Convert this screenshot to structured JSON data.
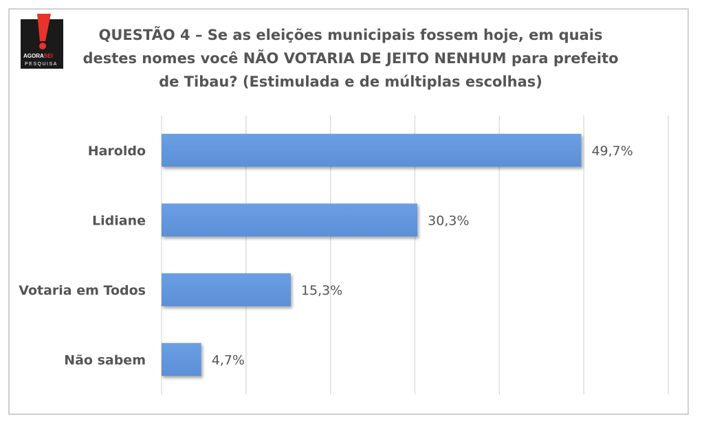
{
  "title_lines": [
    "QUESTÃO 4 – Se as eleições municipais fossem hoje, em quais",
    "destes nomes você NÃO VOTARIA DE JEITO NENHUM para prefeito",
    "de Tibau? (Estimulada e de múltiplas escolhas)"
  ],
  "logo": {
    "line1_a": "AGORA",
    "line1_b": "SEI",
    "line2": "PESQUISA",
    "accent_color": "#e8322b"
  },
  "colors": {
    "bar": "#5b8fd6",
    "grid": "#d9d9d9",
    "text": "#555555"
  },
  "chart_data": {
    "type": "bar",
    "orientation": "horizontal",
    "title": "QUESTÃO 4 – Se as eleições municipais fossem hoje, em quais destes nomes você NÃO VOTARIA DE JEITO NENHUM para prefeito de Tibau? (Estimulada e de múltiplas escolhas)",
    "categories": [
      "Haroldo",
      "Lidiane",
      "Votaria em Todos",
      "Não sabem"
    ],
    "values": [
      49.7,
      30.3,
      15.3,
      4.7
    ],
    "value_labels": [
      "49,7%",
      "30,3%",
      "15,3%",
      "4,7%"
    ],
    "xlim": [
      0,
      60
    ],
    "grid": true,
    "legend": "none"
  }
}
